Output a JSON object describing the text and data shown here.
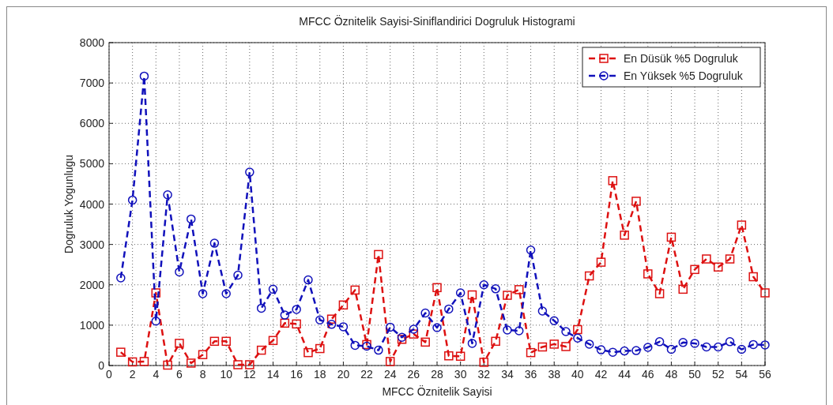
{
  "chart_data": {
    "type": "line",
    "title": "MFCC Öznitelik Sayisi-Siniflandirici Dogruluk Histogrami",
    "xlabel": "MFCC Öznitelik Sayisi",
    "ylabel": "Dogruluk Yogunlugu",
    "x": [
      1,
      2,
      3,
      4,
      5,
      6,
      7,
      8,
      9,
      10,
      11,
      12,
      13,
      14,
      15,
      16,
      17,
      18,
      19,
      20,
      21,
      22,
      23,
      24,
      25,
      26,
      27,
      28,
      29,
      30,
      31,
      32,
      33,
      34,
      35,
      36,
      37,
      38,
      39,
      40,
      41,
      42,
      43,
      44,
      45,
      46,
      47,
      48,
      49,
      50,
      51,
      52,
      53,
      54,
      55,
      56
    ],
    "series": [
      {
        "name": "En Düsük %5 Dogruluk",
        "color": "#dd1111",
        "marker": "square",
        "values": [
          330,
          90,
          100,
          1800,
          10,
          550,
          60,
          270,
          600,
          600,
          20,
          20,
          380,
          620,
          1050,
          1030,
          320,
          420,
          1150,
          1500,
          1870,
          520,
          2750,
          100,
          650,
          780,
          580,
          1930,
          240,
          230,
          1750,
          80,
          600,
          1740,
          1880,
          320,
          460,
          530,
          470,
          890,
          2220,
          2560,
          4580,
          3230,
          4070,
          2270,
          1780,
          3180,
          1890,
          2380,
          2640,
          2440,
          2640,
          3480,
          2200,
          1800
        ]
      },
      {
        "name": "En Yüksek %5 Dogruluk",
        "color": "#1111bb",
        "marker": "circle",
        "values": [
          2170,
          4100,
          7170,
          1100,
          4230,
          2320,
          3630,
          1780,
          3030,
          1780,
          2240,
          4790,
          1420,
          1890,
          1250,
          1390,
          2120,
          1130,
          1020,
          960,
          500,
          480,
          380,
          950,
          700,
          900,
          1300,
          940,
          1400,
          1800,
          550,
          2000,
          1900,
          880,
          860,
          2860,
          1350,
          1110,
          840,
          680,
          530,
          390,
          330,
          360,
          370,
          450,
          590,
          400,
          570,
          550,
          460,
          460,
          590,
          400,
          520,
          510
        ]
      }
    ],
    "xlim": [
      0,
      56
    ],
    "xticks": [
      0,
      2,
      4,
      6,
      8,
      10,
      12,
      14,
      16,
      18,
      20,
      22,
      24,
      26,
      28,
      30,
      32,
      34,
      36,
      38,
      40,
      42,
      44,
      46,
      48,
      50,
      52,
      54,
      56
    ],
    "ylim": [
      0,
      8000
    ],
    "yticks": [
      0,
      1000,
      2000,
      3000,
      4000,
      5000,
      6000,
      7000,
      8000
    ],
    "grid": true,
    "legend": "top right",
    "line_style": "dashed"
  }
}
